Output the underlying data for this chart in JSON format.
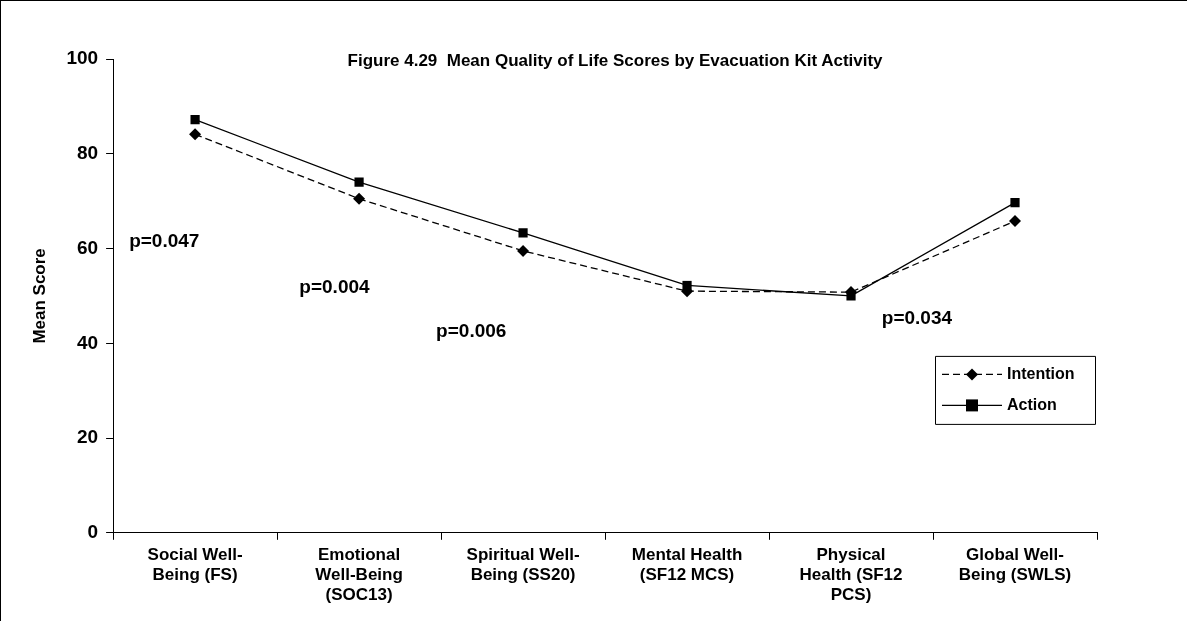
{
  "chart_data": {
    "type": "line",
    "title": "Figure 4.29  Mean Quality of Life Scores by Evacuation Kit Activity",
    "ylabel": "Mean Score",
    "categories": [
      "Social Well-Being (FS)",
      "Emotional Well-Being (SOC13)",
      "Spiritual Well-Being (SS20)",
      "Mental Health (SF12 MCS)",
      "Physical Health (SF12 PCS)",
      "Global Well-Being (SWLS)"
    ],
    "series": [
      {
        "name": "Intention",
        "color": "#000000",
        "values": [
          84.1,
          70.5,
          59.5,
          51.0,
          50.8,
          65.8
        ],
        "marker": "diamond",
        "line_style": "dashed"
      },
      {
        "name": "Action",
        "color": "#000000",
        "values": [
          87.2,
          74.0,
          63.3,
          52.2,
          50.0,
          69.7
        ],
        "marker": "square",
        "line_style": "solid"
      }
    ],
    "ylim": [
      0,
      100
    ],
    "yticks": [
      0,
      20,
      40,
      60,
      80,
      100
    ],
    "grid": false,
    "legend": "right",
    "annotations": [
      "p=0.047",
      "p=0.004",
      "p=0.006",
      "p=0.034"
    ]
  }
}
